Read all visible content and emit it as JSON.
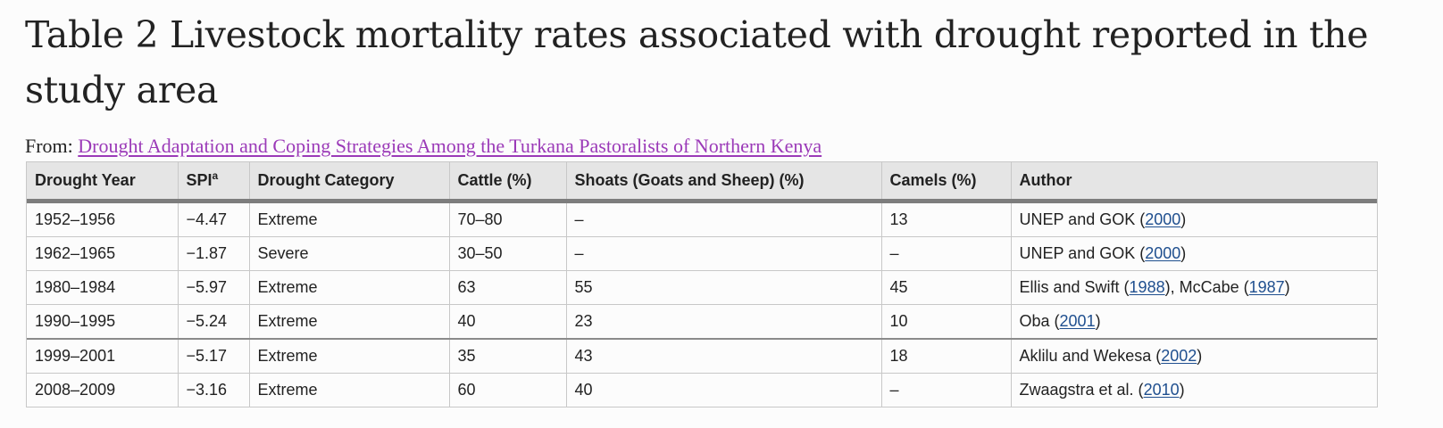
{
  "title": "Table 2 Livestock mortality rates associated with drought reported in the study area",
  "source": {
    "prefix": "From: ",
    "link_text": "Drought Adaptation and Coping Strategies Among the Turkana Pastoralists of Northern Kenya"
  },
  "table": {
    "columns": {
      "year": "Drought Year",
      "spi": "SPI",
      "spi_sup": "a",
      "category": "Drought Category",
      "cattle": "Cattle (%)",
      "shoats": "Shoats (Goats and Sheep) (%)",
      "camels": "Camels (%)",
      "author": "Author"
    },
    "rows": [
      {
        "year": "1952–1956",
        "spi": "−4.47",
        "category": "Extreme",
        "cattle": "70–80",
        "shoats": "–",
        "camels": "13",
        "author": {
          "pre": "UNEP and GOK (",
          "cite1": "2000",
          "mid": ")",
          "cite2": "",
          "post": ""
        }
      },
      {
        "year": "1962–1965",
        "spi": "−1.87",
        "category": "Severe",
        "cattle": "30–50",
        "shoats": "–",
        "camels": "–",
        "author": {
          "pre": "UNEP and GOK (",
          "cite1": "2000",
          "mid": ")",
          "cite2": "",
          "post": ""
        }
      },
      {
        "year": "1980–1984",
        "spi": "−5.97",
        "category": "Extreme",
        "cattle": "63",
        "shoats": "55",
        "camels": "45",
        "author": {
          "pre": "Ellis and Swift (",
          "cite1": "1988",
          "mid": "), McCabe (",
          "cite2": "1987",
          "post": ")"
        }
      },
      {
        "year": "1990–1995",
        "spi": "−5.24",
        "category": "Extreme",
        "cattle": "40",
        "shoats": "23",
        "camels": "10",
        "author": {
          "pre": "Oba (",
          "cite1": "2001",
          "mid": ")",
          "cite2": "",
          "post": ""
        }
      },
      {
        "year": "1999–2001",
        "spi": "−5.17",
        "category": "Extreme",
        "cattle": "35",
        "shoats": "43",
        "camels": "18",
        "author": {
          "pre": "Aklilu and Wekesa (",
          "cite1": "2002",
          "mid": ")",
          "cite2": "",
          "post": ""
        }
      },
      {
        "year": "2008–2009",
        "spi": "−3.16",
        "category": "Extreme",
        "cattle": "60",
        "shoats": "40",
        "camels": "–",
        "author": {
          "pre": "Zwaagstra et al. (",
          "cite1": "2010",
          "mid": ")",
          "cite2": "",
          "post": ""
        }
      }
    ]
  },
  "colors": {
    "link": "#9b3ab8",
    "citation": "#1f4f8f",
    "header_bg": "#e5e5e5"
  }
}
